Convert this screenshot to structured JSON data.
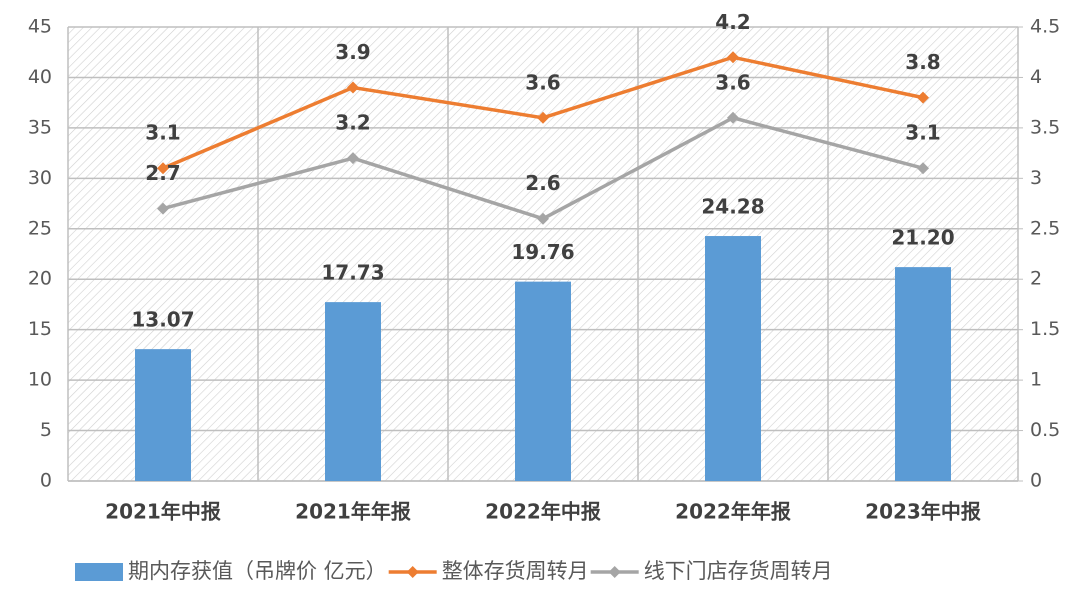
{
  "chart_data": {
    "type": "bar",
    "categories": [
      "2021年中报",
      "2021年年报",
      "2022年中报",
      "2022年年报",
      "2023年中报"
    ],
    "series": [
      {
        "name": "期内存获值（吊牌价 亿元）",
        "type": "bar",
        "color": "#5b9bd5",
        "values": [
          13.07,
          17.73,
          19.76,
          24.28,
          21.2
        ],
        "value_labels": [
          "13.07",
          "17.73",
          "19.76",
          "24.28",
          "21.20"
        ]
      },
      {
        "name": "整体存货周转月",
        "type": "line",
        "axis": "y2",
        "color": "#ed7d31",
        "values": [
          3.1,
          3.9,
          3.6,
          4.2,
          3.8
        ]
      },
      {
        "name": "线下门店存货周转月",
        "type": "line",
        "axis": "y2",
        "color": "#a5a5a5",
        "values": [
          2.7,
          3.2,
          2.6,
          3.6,
          3.1
        ]
      }
    ],
    "ylim": [
      0,
      45
    ],
    "yticks": [
      0,
      5,
      10,
      15,
      20,
      25,
      30,
      35,
      40,
      45
    ],
    "y2lim": [
      0,
      4.5
    ],
    "y2ticks": [
      0,
      0.5,
      1,
      1.5,
      2,
      2.5,
      3,
      3.5,
      4,
      4.5
    ],
    "grid": true,
    "legend": "bottom"
  }
}
